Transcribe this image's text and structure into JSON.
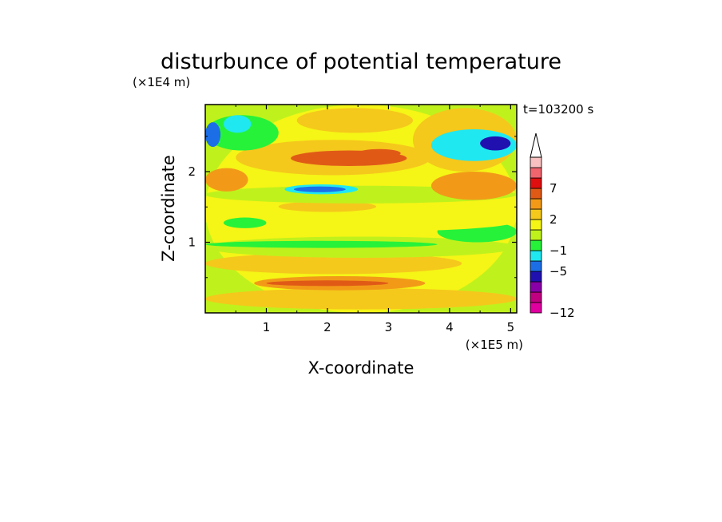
{
  "chart_data": {
    "type": "heatmap",
    "title": "disturbunce of potential temperature",
    "time_label": "t=103200 s",
    "xlabel": "X-coordinate",
    "ylabel": "Z-coordinate",
    "x_unit": "(×1E5 m)",
    "y_unit": "(×1E4 m)",
    "xlim": [
      0,
      5.1
    ],
    "ylim": [
      0,
      2.95
    ],
    "x_ticks": [
      1,
      2,
      3,
      4,
      5
    ],
    "y_ticks": [
      1,
      2
    ],
    "x_tick_labels": [
      "1",
      "2",
      "3",
      "4",
      "5"
    ],
    "y_tick_labels": [
      "1",
      "2"
    ],
    "colorbar": {
      "levels": [
        -12,
        -9,
        -7,
        -5,
        -3,
        -1,
        0,
        1,
        2,
        4,
        5,
        7,
        9,
        11
      ],
      "tick_labels": [
        "7",
        "2",
        "−1",
        "−5",
        "−12"
      ],
      "tick_values": [
        7,
        2,
        -1,
        -5,
        -12
      ],
      "colors": [
        "#e000a0",
        "#c00080",
        "#8a00a8",
        "#2010b0",
        "#1c6ee6",
        "#20e8f0",
        "#26f23a",
        "#bff21c",
        "#f5f516",
        "#f5c81c",
        "#f29a18",
        "#e05a16",
        "#e00e0e",
        "#f0646e",
        "#f8c0c0"
      ],
      "extend_max": true
    },
    "regions": [
      {
        "x": 0.0,
        "x2": 5.1,
        "z": 0.0,
        "z2": 2.95,
        "value": 1.5
      },
      {
        "x": 0.0,
        "x2": 5.1,
        "z": 0.05,
        "z2": 0.35,
        "value": 2.5
      },
      {
        "x": 0.0,
        "x2": 4.2,
        "z": 0.55,
        "z2": 0.85,
        "value": 2.6
      },
      {
        "x": 0.8,
        "x2": 3.6,
        "z": 0.32,
        "z2": 0.52,
        "value": 4.5
      },
      {
        "x": 1.0,
        "x2": 3.0,
        "z": 0.38,
        "z2": 0.46,
        "value": 5.5
      },
      {
        "x": 0.0,
        "x2": 5.1,
        "z": 0.78,
        "z2": 1.08,
        "value": 0.5
      },
      {
        "x": 0.0,
        "x2": 3.8,
        "z": 0.92,
        "z2": 1.02,
        "value": -0.5
      },
      {
        "x": 3.8,
        "x2": 5.1,
        "z": 1.0,
        "z2": 1.3,
        "value": -0.8
      },
      {
        "x": 0.0,
        "x2": 5.1,
        "z": 1.15,
        "z2": 1.45,
        "value": 1.0
      },
      {
        "x": 0.3,
        "x2": 1.0,
        "z": 1.2,
        "z2": 1.35,
        "value": -0.5
      },
      {
        "x": 1.2,
        "x2": 2.8,
        "z": 1.43,
        "z2": 1.58,
        "value": 3.0
      },
      {
        "x": 0.0,
        "x2": 5.1,
        "z": 1.55,
        "z2": 1.8,
        "value": 0.5
      },
      {
        "x": 1.3,
        "x2": 2.5,
        "z": 1.68,
        "z2": 1.82,
        "value": -3.0
      },
      {
        "x": 1.45,
        "x2": 2.3,
        "z": 1.71,
        "z2": 1.79,
        "value": -4.0
      },
      {
        "x": 0.0,
        "x2": 0.7,
        "z": 1.72,
        "z2": 2.05,
        "value": 4.5
      },
      {
        "x": 3.7,
        "x2": 5.1,
        "z": 1.6,
        "z2": 2.0,
        "value": 4.0
      },
      {
        "x": 0.5,
        "x2": 3.7,
        "z": 1.95,
        "z2": 2.45,
        "value": 3.0
      },
      {
        "x": 1.4,
        "x2": 3.3,
        "z": 2.08,
        "z2": 2.3,
        "value": 5.0
      },
      {
        "x": 2.5,
        "x2": 3.2,
        "z": 2.2,
        "z2": 2.32,
        "value": 6.5
      },
      {
        "x": 0.0,
        "x2": 1.2,
        "z": 2.3,
        "z2": 2.8,
        "value": -1.0
      },
      {
        "x": 0.0,
        "x2": 0.25,
        "z": 2.35,
        "z2": 2.7,
        "value": -4.0
      },
      {
        "x": 0.3,
        "x2": 0.75,
        "z": 2.55,
        "z2": 2.8,
        "value": -3.0
      },
      {
        "x": 1.5,
        "x2": 3.4,
        "z": 2.55,
        "z2": 2.9,
        "value": 2.3
      },
      {
        "x": 3.4,
        "x2": 5.1,
        "z": 2.0,
        "z2": 2.9,
        "value": 3.5
      },
      {
        "x": 3.7,
        "x2": 5.1,
        "z": 2.15,
        "z2": 2.6,
        "value": -2.0
      },
      {
        "x": 4.5,
        "x2": 5.0,
        "z": 2.3,
        "z2": 2.5,
        "value": -6.0
      }
    ]
  }
}
